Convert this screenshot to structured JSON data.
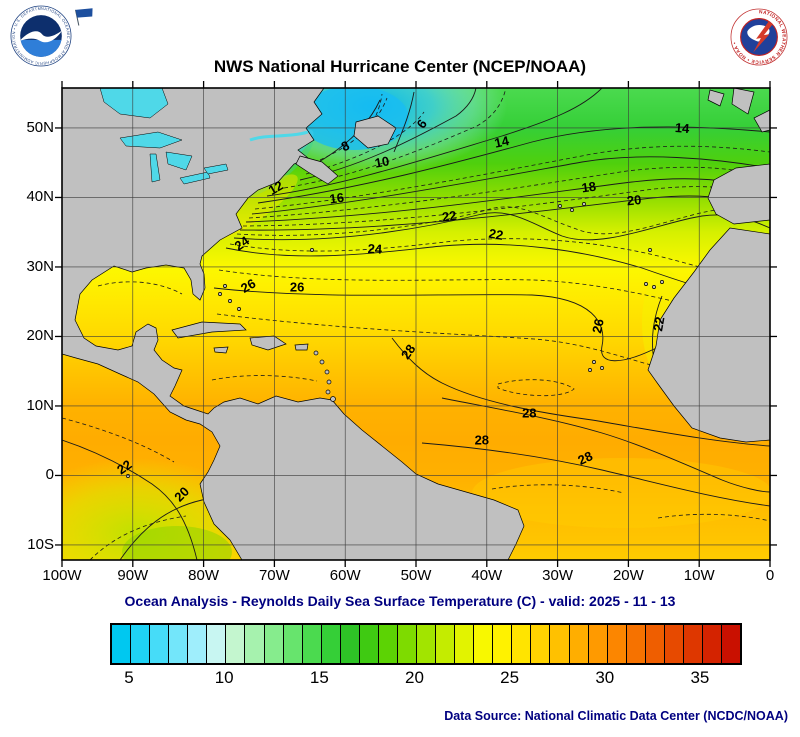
{
  "header": {
    "title": "NWS National Hurricane Center (NCEP/NOAA)",
    "noaa_ring_text": "NATIONAL OCEANIC AND ATMOSPHERIC ADMINISTRATION • U.S. DEPARTMENT OF COMMERCE",
    "nws_ring_text": "NATIONAL WEATHER SERVICE • NOAA •",
    "icons": {
      "noaa_logo": "circle-seal",
      "nws_logo": "circle-seal",
      "flag": "blue-pennant"
    }
  },
  "map": {
    "lat_ticks": [
      {
        "label": "50N",
        "lat": 50
      },
      {
        "label": "40N",
        "lat": 40
      },
      {
        "label": "30N",
        "lat": 30
      },
      {
        "label": "20N",
        "lat": 20
      },
      {
        "label": "10N",
        "lat": 10
      },
      {
        "label": "0",
        "lat": 0
      },
      {
        "label": "10S",
        "lat": -10
      }
    ],
    "lon_ticks": [
      {
        "label": "100W",
        "lon": -100
      },
      {
        "label": "90W",
        "lon": -90
      },
      {
        "label": "80W",
        "lon": -80
      },
      {
        "label": "70W",
        "lon": -70
      },
      {
        "label": "60W",
        "lon": -60
      },
      {
        "label": "50W",
        "lon": -50
      },
      {
        "label": "40W",
        "lon": -40
      },
      {
        "label": "30W",
        "lon": -30
      },
      {
        "label": "20W",
        "lon": -20
      },
      {
        "label": "10W",
        "lon": -10
      },
      {
        "label": "0",
        "lon": 0
      }
    ],
    "contour_labels": [
      {
        "v": "6",
        "lon": -49.2,
        "lat": 50.6,
        "r": -55
      },
      {
        "v": "8",
        "lon": -60.0,
        "lat": 47.4,
        "r": -25
      },
      {
        "v": "10",
        "lon": -54.8,
        "lat": 45.1,
        "r": -10
      },
      {
        "v": "12",
        "lon": -69.8,
        "lat": 41.4,
        "r": -30
      },
      {
        "v": "14",
        "lon": -37.9,
        "lat": 48.0,
        "r": -12
      },
      {
        "v": "14",
        "lon": -12.4,
        "lat": 50.0,
        "r": 5
      },
      {
        "v": "16",
        "lon": -61.2,
        "lat": 39.9,
        "r": -8
      },
      {
        "v": "18",
        "lon": -25.6,
        "lat": 41.5,
        "r": -8
      },
      {
        "v": "20",
        "lon": -19.2,
        "lat": 39.6,
        "r": -5
      },
      {
        "v": "22",
        "lon": -45.3,
        "lat": 37.3,
        "r": -8
      },
      {
        "v": "22",
        "lon": -38.7,
        "lat": 34.7,
        "r": 10
      },
      {
        "v": "24",
        "lon": -74.6,
        "lat": 33.4,
        "r": -35
      },
      {
        "v": "24",
        "lon": -55.8,
        "lat": 32.6,
        "r": 3
      },
      {
        "v": "26",
        "lon": -73.7,
        "lat": 27.3,
        "r": -30
      },
      {
        "v": "26",
        "lon": -66.8,
        "lat": 27.1,
        "r": 0
      },
      {
        "v": "26",
        "lon": -24.3,
        "lat": 21.5,
        "r": -78
      },
      {
        "v": "22",
        "lon": -15.7,
        "lat": 21.8,
        "r": -80
      },
      {
        "v": "28",
        "lon": -51.1,
        "lat": 17.8,
        "r": -55
      },
      {
        "v": "28",
        "lon": -34.0,
        "lat": 9.0,
        "r": 0
      },
      {
        "v": "28",
        "lon": -40.7,
        "lat": 5.1,
        "r": 0
      },
      {
        "v": "28",
        "lon": -26.1,
        "lat": 2.5,
        "r": -25
      },
      {
        "v": "22",
        "lon": -91.2,
        "lat": 1.2,
        "r": -35
      },
      {
        "v": "20",
        "lon": -83.1,
        "lat": -2.7,
        "r": -45
      }
    ],
    "land_color": "#c0c0c0",
    "lake_color": "#4fd8e8"
  },
  "caption": "Ocean Analysis - Reynolds Daily Sea Surface Temperature (C) - valid: 2025 - 11 - 13",
  "colorbar": {
    "units": "C",
    "min": 4,
    "max": 37,
    "segment_colors": [
      "#00c8f0",
      "#1fd2f5",
      "#46dcf8",
      "#73e6fa",
      "#9feefc",
      "#c8f6f2",
      "#c4f6cf",
      "#a6f2ae",
      "#86ec8d",
      "#67e46d",
      "#4bda4f",
      "#35cf37",
      "#2ec426",
      "#3fca12",
      "#5cd304",
      "#7edb00",
      "#a2e400",
      "#c4ec00",
      "#e2f300",
      "#f8f800",
      "#fff200",
      "#ffe400",
      "#ffd300",
      "#ffc100",
      "#ffae00",
      "#ff9a00",
      "#fc8600",
      "#f67200",
      "#ef5e00",
      "#e74a00",
      "#de3700",
      "#d42300",
      "#c91000"
    ],
    "ticks": [
      {
        "value": 5,
        "label": "5"
      },
      {
        "value": 10,
        "label": "10"
      },
      {
        "value": 15,
        "label": "15"
      },
      {
        "value": 20,
        "label": "20"
      },
      {
        "value": 25,
        "label": "25"
      },
      {
        "value": 30,
        "label": "30"
      },
      {
        "value": 35,
        "label": "35"
      }
    ]
  },
  "footer": {
    "data_source": "Data Source: National Climatic Data Center (NCDC/NOAA)"
  }
}
